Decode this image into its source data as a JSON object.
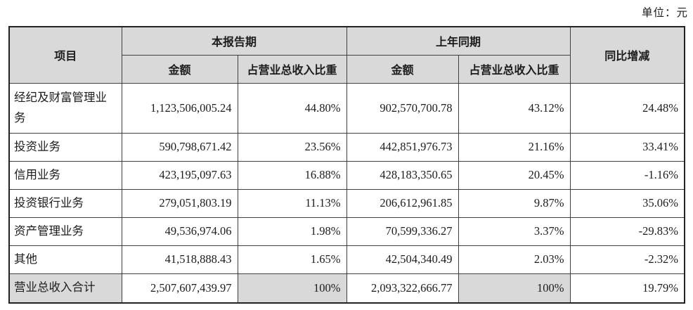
{
  "unit_label": "单位：元",
  "colors": {
    "header_bg": "#d9d9d9",
    "total_bg": "#d9d9d9",
    "border": "#3f3f3f",
    "text": "#1c1c1c"
  },
  "table": {
    "header": {
      "item": "项目",
      "current_period": "本报告期",
      "prior_period": "上年同期",
      "yoy": "同比增减",
      "amount_cur": "金额",
      "pct_cur": "占营业总收入比重",
      "amount_prior": "金额",
      "pct_prior": "占营业总收入比重"
    },
    "rows": [
      {
        "item": "经纪及财富管理业务",
        "cur_amount": "1,123,506,005.24",
        "cur_pct": "44.80%",
        "prior_amount": "902,570,700.78",
        "prior_pct": "43.12%",
        "yoy": "24.48%"
      },
      {
        "item": "投资业务",
        "cur_amount": "590,798,671.42",
        "cur_pct": "23.56%",
        "prior_amount": "442,851,976.73",
        "prior_pct": "21.16%",
        "yoy": "33.41%"
      },
      {
        "item": "信用业务",
        "cur_amount": "423,195,097.63",
        "cur_pct": "16.88%",
        "prior_amount": "428,183,350.65",
        "prior_pct": "20.45%",
        "yoy": "-1.16%"
      },
      {
        "item": "投资银行业务",
        "cur_amount": "279,051,803.19",
        "cur_pct": "11.13%",
        "prior_amount": "206,612,961.85",
        "prior_pct": "9.87%",
        "yoy": "35.06%"
      },
      {
        "item": "资产管理业务",
        "cur_amount": "49,536,974.06",
        "cur_pct": "1.98%",
        "prior_amount": "70,599,336.27",
        "prior_pct": "3.37%",
        "yoy": "-29.83%"
      },
      {
        "item": "其他",
        "cur_amount": "41,518,888.43",
        "cur_pct": "1.65%",
        "prior_amount": "42,504,340.49",
        "prior_pct": "2.03%",
        "yoy": "-2.32%"
      }
    ],
    "total_row": {
      "item": "营业总收入合计",
      "cur_amount": "2,507,607,439.97",
      "cur_pct": "100%",
      "prior_amount": "2,093,322,666.77",
      "prior_pct": "100%",
      "yoy": "19.79%"
    }
  }
}
